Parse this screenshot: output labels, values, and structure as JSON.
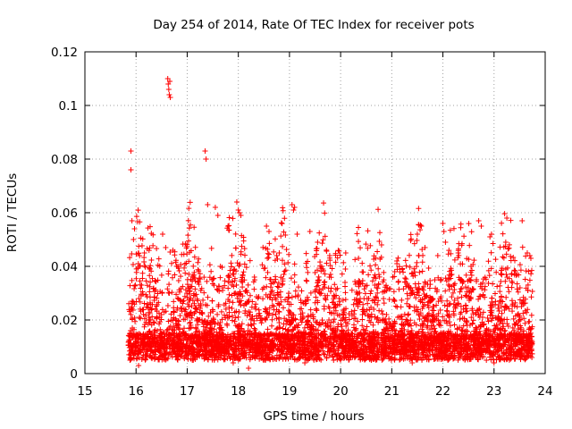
{
  "chart_data": {
    "type": "scatter",
    "title": "Day 254 of 2014, Rate Of TEC Index for receiver pots",
    "xlabel": "GPS time / hours",
    "ylabel": "ROTI / TECUs",
    "xlim": [
      15,
      24
    ],
    "ylim": [
      0,
      0.12
    ],
    "x_ticks": [
      15,
      16,
      17,
      18,
      19,
      20,
      21,
      22,
      23,
      24
    ],
    "x_tick_labels": [
      "15",
      "16",
      "17",
      "18",
      "19",
      "20",
      "21",
      "22",
      "23",
      "24"
    ],
    "y_ticks": [
      0,
      0.02,
      0.04,
      0.06,
      0.08,
      0.1,
      0.12
    ],
    "y_tick_labels": [
      "0",
      "0.02",
      "0.04",
      "0.06",
      "0.08",
      "0.1",
      "0.12"
    ],
    "grid": true,
    "marker": "+",
    "color": "#ff0000",
    "x_data_range": [
      15.85,
      23.75
    ],
    "series": [
      {
        "name": "ROTI",
        "points": [
          [
            15.9,
            0.083
          ],
          [
            15.9,
            0.076
          ],
          [
            15.92,
            0.057
          ],
          [
            15.95,
            0.05
          ],
          [
            15.97,
            0.054
          ],
          [
            16.62,
            0.11
          ],
          [
            16.63,
            0.108
          ],
          [
            16.64,
            0.106
          ],
          [
            16.65,
            0.104
          ],
          [
            16.66,
            0.109
          ],
          [
            16.67,
            0.103
          ],
          [
            16.52,
            0.052
          ],
          [
            16.58,
            0.047
          ],
          [
            16.72,
            0.046
          ],
          [
            17.35,
            0.083
          ],
          [
            17.37,
            0.08
          ],
          [
            17.4,
            0.063
          ],
          [
            17.55,
            0.062
          ],
          [
            17.6,
            0.059
          ],
          [
            17.97,
            0.064
          ],
          [
            18.0,
            0.061
          ],
          [
            18.02,
            0.06
          ],
          [
            18.05,
            0.059
          ],
          [
            18.55,
            0.055
          ],
          [
            18.6,
            0.053
          ],
          [
            18.75,
            0.044
          ],
          [
            18.8,
            0.045
          ],
          [
            19.05,
            0.063
          ],
          [
            19.08,
            0.061
          ],
          [
            19.1,
            0.062
          ],
          [
            19.15,
            0.052
          ],
          [
            19.4,
            0.053
          ],
          [
            19.55,
            0.049
          ],
          [
            20.1,
            0.045
          ],
          [
            20.35,
            0.043
          ],
          [
            20.8,
            0.048
          ],
          [
            21.1,
            0.042
          ],
          [
            21.5,
            0.052
          ],
          [
            21.58,
            0.055
          ],
          [
            21.65,
            0.047
          ],
          [
            21.9,
            0.044
          ],
          [
            22.0,
            0.056
          ],
          [
            22.02,
            0.053
          ],
          [
            22.05,
            0.049
          ],
          [
            22.3,
            0.045
          ],
          [
            22.55,
            0.04
          ],
          [
            22.7,
            0.057
          ],
          [
            22.75,
            0.055
          ],
          [
            22.92,
            0.051
          ],
          [
            22.95,
            0.052
          ],
          [
            23.25,
            0.058
          ],
          [
            23.55,
            0.057
          ],
          [
            23.65,
            0.045
          ],
          [
            23.7,
            0.044
          ],
          [
            23.72,
            0.043
          ],
          [
            16.05,
            0.003
          ],
          [
            17.1,
            0.005
          ],
          [
            17.9,
            0.004
          ],
          [
            18.2,
            0.002
          ],
          [
            19.3,
            0.004
          ],
          [
            20.6,
            0.005
          ],
          [
            21.4,
            0.004
          ],
          [
            22.1,
            0.005
          ],
          [
            23.0,
            0.004
          ],
          [
            23.74,
            0.006
          ]
        ]
      }
    ]
  }
}
